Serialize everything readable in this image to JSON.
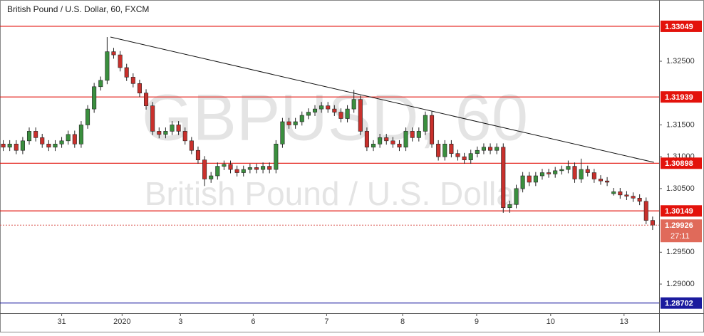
{
  "chart_data": {
    "type": "candlestick",
    "title": "British Pound / U.S. Dollar, 60, FXCM",
    "watermark": "GBPUSD, 60",
    "watermark_subtitle": "British Pound / U.S. Dollar",
    "up_color": "#3a8f3e",
    "down_color": "#c9302c",
    "xlim": [
      -0.5,
      101
    ],
    "xticks": [
      {
        "value": 9,
        "label": "31"
      },
      {
        "value": 18.3,
        "label": "2020"
      },
      {
        "value": 27.3,
        "label": "3"
      },
      {
        "value": 38.5,
        "label": "6"
      },
      {
        "value": 49.8,
        "label": "7"
      },
      {
        "value": 61.5,
        "label": "8"
      },
      {
        "value": 72.9,
        "label": "9"
      },
      {
        "value": 84.3,
        "label": "10"
      },
      {
        "value": 95.6,
        "label": "13"
      }
    ],
    "ylim": [
      1.28542,
      1.33462
    ],
    "yticks": [
      {
        "value": 1.29,
        "label": "1.29000"
      },
      {
        "value": 1.295,
        "label": "1.29500"
      },
      {
        "value": 1.305,
        "label": "1.30500"
      },
      {
        "value": 1.31,
        "label": "1.31000"
      },
      {
        "value": 1.315,
        "label": "1.31500"
      },
      {
        "value": 1.325,
        "label": "1.32500"
      }
    ],
    "levels": [
      {
        "value": 1.33049,
        "color": "#e3120b"
      },
      {
        "value": 1.31939,
        "color": "#e3120b"
      },
      {
        "value": 1.30898,
        "color": "#e3120b"
      },
      {
        "value": 1.30149,
        "color": "#e3120b"
      },
      {
        "value": 1.28702,
        "color": "#1a1a9e"
      }
    ],
    "last_price": 1.29926,
    "countdown": "27:11",
    "trendline": {
      "start": [
        16.5,
        1.3288
      ],
      "end": [
        100.2,
        1.30912
      ]
    },
    "candles": [
      [
        1.312,
        1.3126,
        1.3109,
        1.3115
      ],
      [
        1.3115,
        1.3126,
        1.3109,
        1.312
      ],
      [
        1.312,
        1.3126,
        1.3104,
        1.311
      ],
      [
        1.311,
        1.3131,
        1.3104,
        1.3125
      ],
      [
        1.3125,
        1.3146,
        1.3119,
        1.314
      ],
      [
        1.314,
        1.3146,
        1.3124,
        1.313
      ],
      [
        1.313,
        1.3136,
        1.3114,
        1.312
      ],
      [
        1.312,
        1.3126,
        1.3109,
        1.3115
      ],
      [
        1.3115,
        1.3126,
        1.3109,
        1.312
      ],
      [
        1.312,
        1.3131,
        1.3114,
        1.3125
      ],
      [
        1.3125,
        1.3141,
        1.3119,
        1.3135
      ],
      [
        1.3135,
        1.3141,
        1.3114,
        1.312
      ],
      [
        1.312,
        1.3156,
        1.3114,
        1.315
      ],
      [
        1.315,
        1.3181,
        1.3144,
        1.3175
      ],
      [
        1.3175,
        1.3216,
        1.3169,
        1.321
      ],
      [
        1.321,
        1.3226,
        1.3204,
        1.322
      ],
      [
        1.322,
        1.3288,
        1.3214,
        1.3265
      ],
      [
        1.3265,
        1.3271,
        1.3254,
        1.326
      ],
      [
        1.326,
        1.3266,
        1.3234,
        1.324
      ],
      [
        1.324,
        1.3246,
        1.3219,
        1.3225
      ],
      [
        1.3225,
        1.3231,
        1.3209,
        1.3215
      ],
      [
        1.3215,
        1.3221,
        1.3194,
        1.32
      ],
      [
        1.32,
        1.3206,
        1.3174,
        1.318
      ],
      [
        1.318,
        1.3186,
        1.3134,
        1.314
      ],
      [
        1.314,
        1.3146,
        1.3129,
        1.3135
      ],
      [
        1.3135,
        1.3146,
        1.3129,
        1.314
      ],
      [
        1.314,
        1.3156,
        1.3134,
        1.315
      ],
      [
        1.315,
        1.3156,
        1.3134,
        1.314
      ],
      [
        1.314,
        1.3146,
        1.3119,
        1.3125
      ],
      [
        1.3125,
        1.3131,
        1.3104,
        1.311
      ],
      [
        1.311,
        1.3116,
        1.3089,
        1.3095
      ],
      [
        1.3095,
        1.3101,
        1.3054,
        1.3065
      ],
      [
        1.3065,
        1.3076,
        1.3059,
        1.307
      ],
      [
        1.307,
        1.3091,
        1.3064,
        1.3085
      ],
      [
        1.3085,
        1.3094,
        1.3079,
        1.3088
      ],
      [
        1.3088,
        1.3094,
        1.3074,
        1.308
      ],
      [
        1.308,
        1.3086,
        1.3069,
        1.3075
      ],
      [
        1.3075,
        1.3086,
        1.3069,
        1.308
      ],
      [
        1.308,
        1.3089,
        1.3074,
        1.3083
      ],
      [
        1.3083,
        1.3089,
        1.3074,
        1.308
      ],
      [
        1.308,
        1.3091,
        1.3074,
        1.3085
      ],
      [
        1.3085,
        1.3091,
        1.3074,
        1.308
      ],
      [
        1.308,
        1.3126,
        1.3074,
        1.312
      ],
      [
        1.312,
        1.3161,
        1.3114,
        1.3155
      ],
      [
        1.3155,
        1.3161,
        1.3144,
        1.315
      ],
      [
        1.315,
        1.3161,
        1.3144,
        1.3155
      ],
      [
        1.3155,
        1.3171,
        1.3149,
        1.3165
      ],
      [
        1.3165,
        1.3176,
        1.3159,
        1.317
      ],
      [
        1.317,
        1.3181,
        1.3164,
        1.3175
      ],
      [
        1.3175,
        1.3186,
        1.3169,
        1.318
      ],
      [
        1.318,
        1.3186,
        1.3169,
        1.3175
      ],
      [
        1.3175,
        1.3181,
        1.3164,
        1.317
      ],
      [
        1.317,
        1.3176,
        1.3154,
        1.316
      ],
      [
        1.316,
        1.3181,
        1.3154,
        1.3175
      ],
      [
        1.3175,
        1.3205,
        1.3169,
        1.319
      ],
      [
        1.319,
        1.3196,
        1.3134,
        1.314
      ],
      [
        1.314,
        1.3146,
        1.3109,
        1.3115
      ],
      [
        1.3115,
        1.3126,
        1.3109,
        1.312
      ],
      [
        1.312,
        1.3136,
        1.3114,
        1.313
      ],
      [
        1.313,
        1.3136,
        1.3119,
        1.3125
      ],
      [
        1.3125,
        1.3131,
        1.3114,
        1.312
      ],
      [
        1.312,
        1.3126,
        1.3109,
        1.3115
      ],
      [
        1.3115,
        1.3146,
        1.3109,
        1.314
      ],
      [
        1.314,
        1.3146,
        1.3124,
        1.313
      ],
      [
        1.313,
        1.3146,
        1.3124,
        1.314
      ],
      [
        1.314,
        1.3171,
        1.3134,
        1.3165
      ],
      [
        1.3165,
        1.3171,
        1.3114,
        1.312
      ],
      [
        1.312,
        1.3126,
        1.3094,
        1.31
      ],
      [
        1.31,
        1.3126,
        1.3094,
        1.312
      ],
      [
        1.312,
        1.3126,
        1.3099,
        1.3105
      ],
      [
        1.3105,
        1.3111,
        1.3094,
        1.31
      ],
      [
        1.31,
        1.3106,
        1.3089,
        1.3095
      ],
      [
        1.3095,
        1.3111,
        1.3089,
        1.3105
      ],
      [
        1.3105,
        1.3116,
        1.3099,
        1.311
      ],
      [
        1.311,
        1.3121,
        1.3104,
        1.3115
      ],
      [
        1.3115,
        1.3121,
        1.3104,
        1.311
      ],
      [
        1.311,
        1.3121,
        1.3104,
        1.3115
      ],
      [
        1.3115,
        1.3121,
        1.3012,
        1.302
      ],
      [
        1.302,
        1.3031,
        1.3012,
        1.3025
      ],
      [
        1.3025,
        1.3056,
        1.3019,
        1.305
      ],
      [
        1.305,
        1.3076,
        1.3044,
        1.307
      ],
      [
        1.307,
        1.3076,
        1.3054,
        1.306
      ],
      [
        1.306,
        1.3076,
        1.3054,
        1.307
      ],
      [
        1.307,
        1.3081,
        1.3064,
        1.3075
      ],
      [
        1.3075,
        1.3081,
        1.3067,
        1.3073
      ],
      [
        1.3073,
        1.3084,
        1.3067,
        1.3078
      ],
      [
        1.3078,
        1.3086,
        1.3072,
        1.308
      ],
      [
        1.308,
        1.3094,
        1.3074,
        1.3085
      ],
      [
        1.3085,
        1.3091,
        1.3059,
        1.3065
      ],
      [
        1.3065,
        1.3097,
        1.3059,
        1.308
      ],
      [
        1.308,
        1.3086,
        1.3069,
        1.3075
      ],
      [
        1.3075,
        1.3081,
        1.3059,
        1.3065
      ],
      [
        1.3065,
        1.3071,
        1.3056,
        1.3062
      ],
      [
        1.3062,
        1.3068,
        1.3054,
        1.306
      ],
      [
        1.3042,
        1.3051,
        1.3039,
        1.3045
      ],
      [
        1.3045,
        1.3051,
        1.3034,
        1.304
      ],
      [
        1.304,
        1.3046,
        1.3032,
        1.3038
      ],
      [
        1.3038,
        1.3044,
        1.3029,
        1.3035
      ],
      [
        1.3035,
        1.3041,
        1.3024,
        1.303
      ],
      [
        1.303,
        1.3036,
        1.2994,
        1.3
      ],
      [
        1.3,
        1.3006,
        1.2985,
        1.29926
      ]
    ]
  }
}
